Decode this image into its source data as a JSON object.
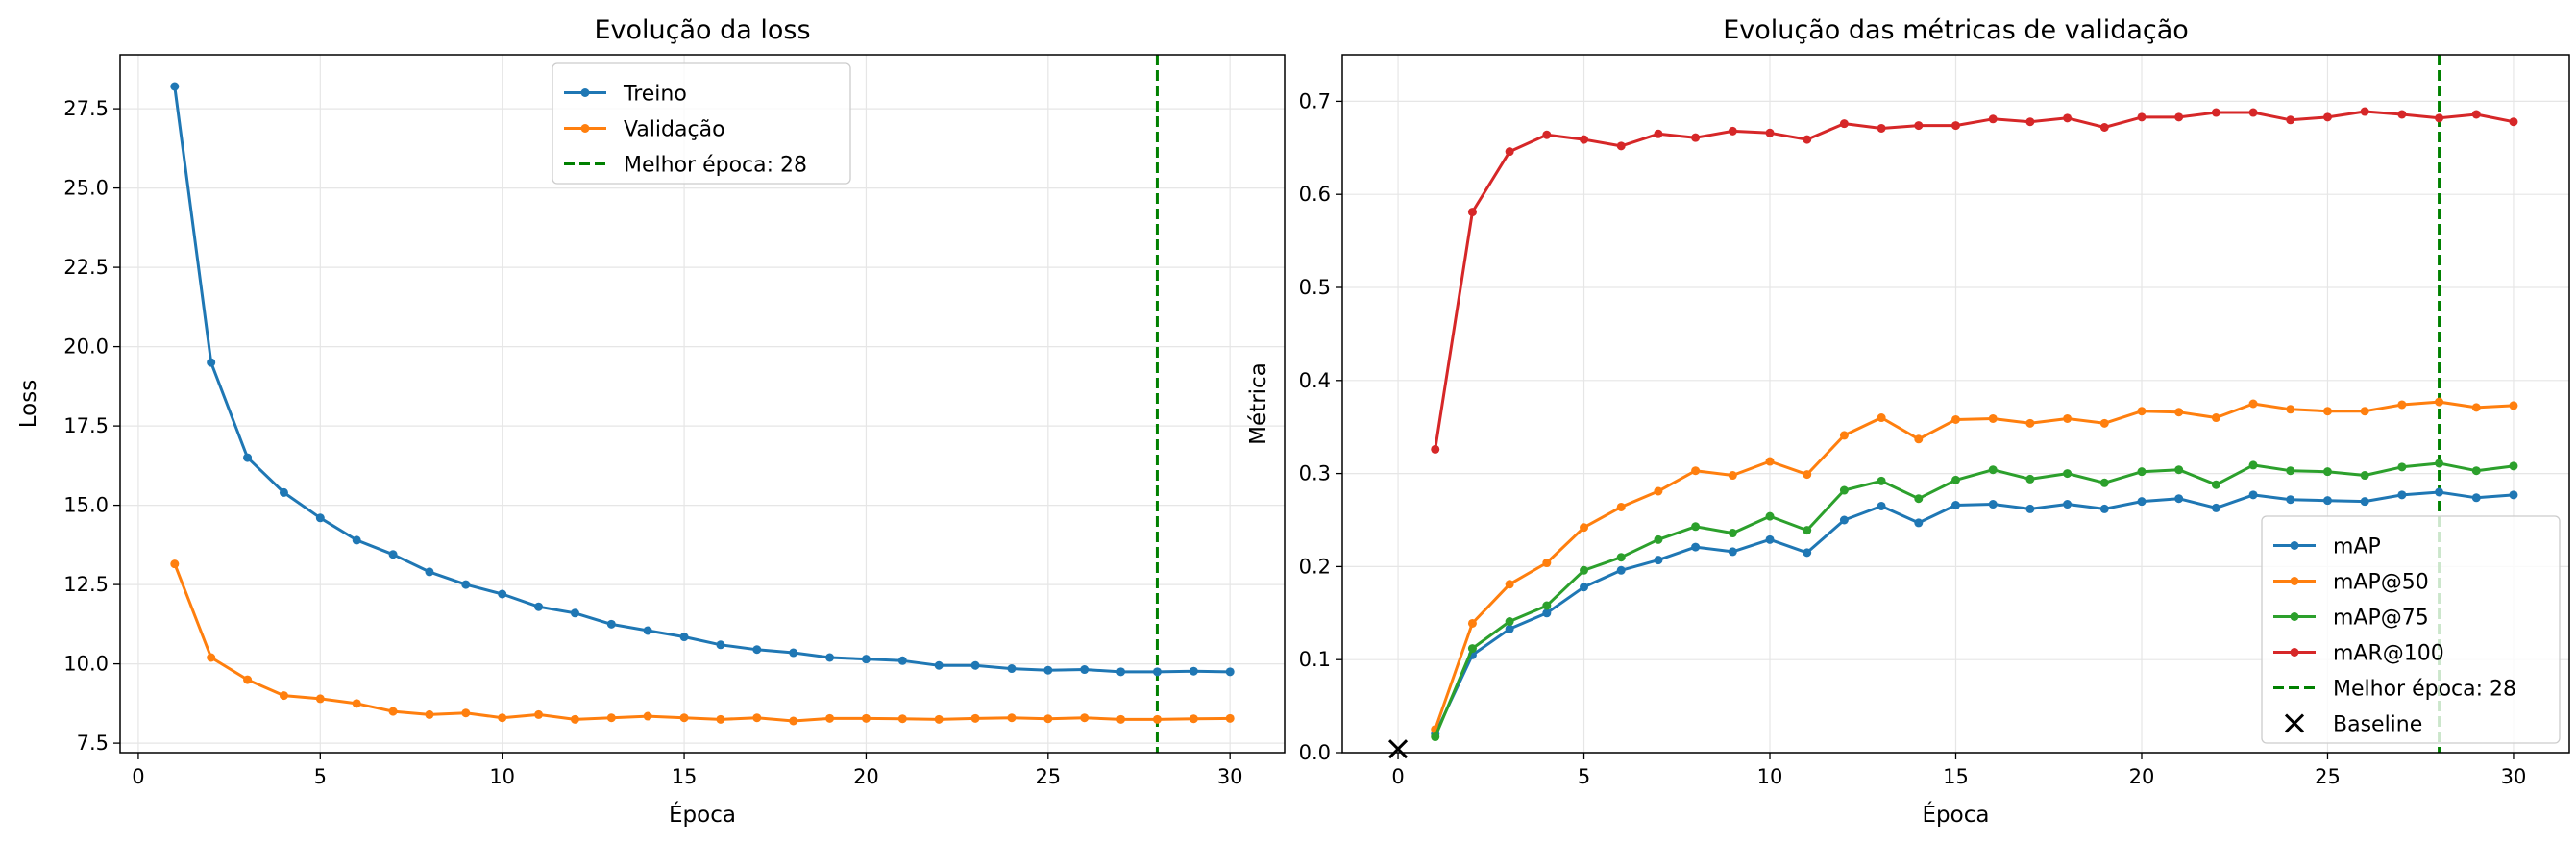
{
  "chart_data": [
    {
      "type": "line",
      "title": "Evolução da loss",
      "xlabel": "Época",
      "ylabel": "Loss",
      "xlim": [
        -0.5,
        31.5
      ],
      "ylim": [
        7.2,
        29.2
      ],
      "xticks": [
        0,
        5,
        10,
        15,
        20,
        25,
        30
      ],
      "yticks": [
        7.5,
        10.0,
        12.5,
        15.0,
        17.5,
        20.0,
        22.5,
        25.0,
        27.5
      ],
      "grid": true,
      "legend_position": "top-center",
      "x": [
        1,
        2,
        3,
        4,
        5,
        6,
        7,
        8,
        9,
        10,
        11,
        12,
        13,
        14,
        15,
        16,
        17,
        18,
        19,
        20,
        21,
        22,
        23,
        24,
        25,
        26,
        27,
        28,
        29,
        30
      ],
      "series": [
        {
          "name": "Treino",
          "color": "#1f77b4",
          "values": [
            28.2,
            19.5,
            16.5,
            15.4,
            14.6,
            13.9,
            13.45,
            12.9,
            12.5,
            12.2,
            11.8,
            11.6,
            11.25,
            11.05,
            10.85,
            10.6,
            10.45,
            10.35,
            10.2,
            10.15,
            10.1,
            9.95,
            9.95,
            9.85,
            9.8,
            9.82,
            9.75,
            9.75,
            9.77,
            9.75
          ]
        },
        {
          "name": "Validação",
          "color": "#ff7f0e",
          "values": [
            13.15,
            10.2,
            9.5,
            9.0,
            8.9,
            8.75,
            8.5,
            8.4,
            8.45,
            8.3,
            8.4,
            8.25,
            8.3,
            8.35,
            8.3,
            8.25,
            8.3,
            8.2,
            8.28,
            8.28,
            8.27,
            8.25,
            8.28,
            8.3,
            8.27,
            8.3,
            8.25,
            8.25,
            8.27,
            8.28
          ]
        }
      ],
      "vline": {
        "x": 28,
        "label": "Melhor época: 28",
        "color": "#008000"
      }
    },
    {
      "type": "line",
      "title": "Evolução das métricas de validação",
      "xlabel": "Época",
      "ylabel": "Métrica",
      "xlim": [
        -1.5,
        31.5
      ],
      "ylim": [
        0.0,
        0.75
      ],
      "xticks": [
        0,
        5,
        10,
        15,
        20,
        25,
        30
      ],
      "yticks": [
        0.0,
        0.1,
        0.2,
        0.3,
        0.4,
        0.5,
        0.6,
        0.7
      ],
      "grid": true,
      "legend_position": "lower-right",
      "x": [
        1,
        2,
        3,
        4,
        5,
        6,
        7,
        8,
        9,
        10,
        11,
        12,
        13,
        14,
        15,
        16,
        17,
        18,
        19,
        20,
        21,
        22,
        23,
        24,
        25,
        26,
        27,
        28,
        29,
        30
      ],
      "series": [
        {
          "name": "mAP",
          "color": "#1f77b4",
          "values": [
            0.02,
            0.105,
            0.133,
            0.15,
            0.178,
            0.196,
            0.207,
            0.221,
            0.216,
            0.229,
            0.215,
            0.25,
            0.265,
            0.247,
            0.266,
            0.267,
            0.262,
            0.267,
            0.262,
            0.27,
            0.273,
            0.263,
            0.277,
            0.272,
            0.271,
            0.27,
            0.277,
            0.28,
            0.274,
            0.277
          ]
        },
        {
          "name": "mAP@50",
          "color": "#ff7f0e",
          "values": [
            0.025,
            0.139,
            0.181,
            0.204,
            0.242,
            0.264,
            0.281,
            0.303,
            0.298,
            0.313,
            0.299,
            0.341,
            0.36,
            0.337,
            0.358,
            0.359,
            0.354,
            0.359,
            0.354,
            0.367,
            0.366,
            0.36,
            0.375,
            0.369,
            0.367,
            0.367,
            0.374,
            0.377,
            0.371,
            0.373
          ]
        },
        {
          "name": "mAP@75",
          "color": "#2ca02c",
          "values": [
            0.017,
            0.112,
            0.141,
            0.158,
            0.196,
            0.21,
            0.229,
            0.243,
            0.236,
            0.254,
            0.239,
            0.282,
            0.292,
            0.273,
            0.293,
            0.304,
            0.294,
            0.3,
            0.29,
            0.302,
            0.304,
            0.288,
            0.309,
            0.303,
            0.302,
            0.298,
            0.307,
            0.311,
            0.303,
            0.308
          ]
        },
        {
          "name": "mAR@100",
          "color": "#d62728",
          "values": [
            0.326,
            0.581,
            0.646,
            0.664,
            0.659,
            0.652,
            0.665,
            0.661,
            0.668,
            0.666,
            0.659,
            0.676,
            0.671,
            0.674,
            0.674,
            0.681,
            0.678,
            0.682,
            0.672,
            0.683,
            0.683,
            0.688,
            0.688,
            0.68,
            0.683,
            0.689,
            0.686,
            0.682,
            0.686,
            0.678
          ]
        }
      ],
      "vline": {
        "x": 28,
        "label": "Melhor época: 28",
        "color": "#008000"
      },
      "baseline": {
        "name": "Baseline",
        "x": 0,
        "y": 0.004
      }
    }
  ]
}
